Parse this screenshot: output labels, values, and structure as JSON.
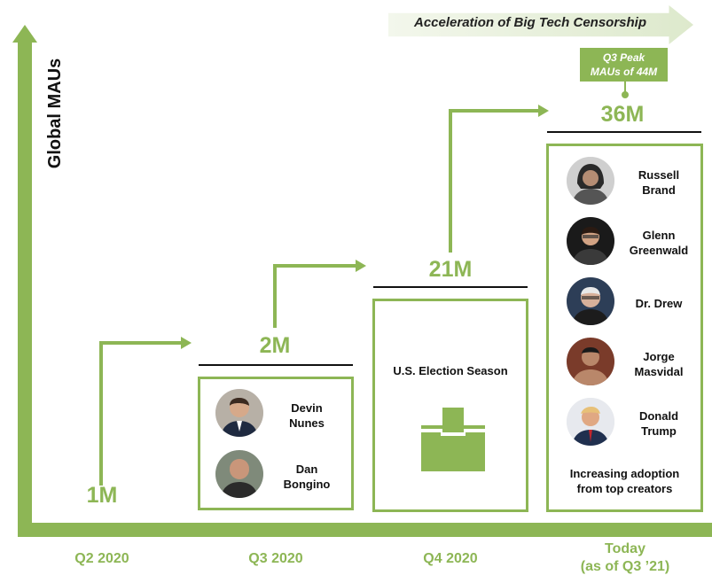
{
  "chart_data": {
    "type": "line",
    "title": "",
    "ylabel": "Global MAUs",
    "xlabel": "",
    "categories": [
      "Q2 2020",
      "Q3 2020",
      "Q4 2020",
      "Today"
    ],
    "x_tick_sublabels": [
      "",
      "",
      "",
      "(as of Q3 ’21)"
    ],
    "values": [
      1,
      2,
      21,
      36
    ],
    "value_labels": [
      "1M",
      "2M",
      "21M",
      "36M"
    ],
    "unit": "M",
    "annotations": {
      "banner": "Acceleration of Big Tech Censorship",
      "peak_line1": "Q3 Peak",
      "peak_line2": "MAUs of 44M",
      "q4_caption": "U.S. Election Season",
      "today_caption_line1": "Increasing adoption",
      "today_caption_line2": "from top creators"
    },
    "creators_q3": [
      {
        "line1": "Devin",
        "line2": "Nunes"
      },
      {
        "line1": "Dan",
        "line2": "Bongino"
      }
    ],
    "creators_today": [
      {
        "line1": "Russell",
        "line2": "Brand"
      },
      {
        "line1": "Glenn",
        "line2": "Greenwald"
      },
      {
        "line1": "Dr. Drew",
        "line2": ""
      },
      {
        "line1": "Jorge",
        "line2": "Masvidal"
      },
      {
        "line1": "Donald",
        "line2": "Trump"
      }
    ],
    "colors": {
      "accent": "#8db655",
      "text": "#111111",
      "banner_fill": "#dde9cc"
    },
    "icons": {
      "q4": "ballot-box-icon",
      "avatars": "person-avatar-icon"
    }
  }
}
